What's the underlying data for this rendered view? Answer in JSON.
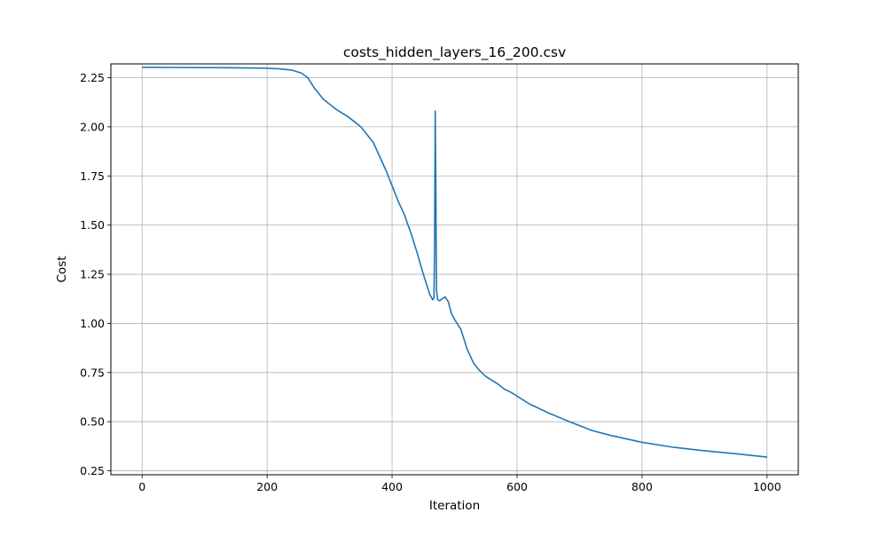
{
  "chart_data": {
    "type": "line",
    "title": "costs_hidden_layers_16_200.csv",
    "xlabel": "Iteration",
    "ylabel": "Cost",
    "xlim": [
      -50,
      1050
    ],
    "ylim": [
      0.23,
      2.32
    ],
    "xticks": [
      0,
      200,
      400,
      600,
      800,
      1000
    ],
    "xtick_labels": [
      "0",
      "200",
      "400",
      "600",
      "800",
      "1000"
    ],
    "yticks": [
      0.25,
      0.5,
      0.75,
      1.0,
      1.25,
      1.5,
      1.75,
      2.0,
      2.25
    ],
    "ytick_labels": [
      "0.25",
      "0.50",
      "0.75",
      "1.00",
      "1.25",
      "1.50",
      "1.75",
      "2.00",
      "2.25"
    ],
    "grid": true,
    "legend": "none",
    "series": [
      {
        "color": "#1f77b4",
        "x": [
          0,
          50,
          100,
          150,
          200,
          220,
          240,
          255,
          265,
          275,
          290,
          310,
          330,
          350,
          370,
          390,
          410,
          420,
          430,
          440,
          450,
          460,
          465,
          467,
          468,
          469,
          470,
          471,
          473,
          476,
          480,
          485,
          490,
          495,
          500,
          510,
          520,
          530,
          540,
          550,
          560,
          570,
          580,
          590,
          600,
          620,
          650,
          680,
          700,
          720,
          750,
          800,
          850,
          900,
          950,
          1000
        ],
        "y": [
          2.303,
          2.302,
          2.301,
          2.3,
          2.298,
          2.295,
          2.288,
          2.273,
          2.25,
          2.2,
          2.14,
          2.09,
          2.05,
          2.0,
          1.92,
          1.78,
          1.62,
          1.55,
          1.46,
          1.36,
          1.25,
          1.15,
          1.12,
          1.13,
          1.4,
          2.08,
          1.7,
          1.17,
          1.12,
          1.115,
          1.125,
          1.135,
          1.11,
          1.05,
          1.02,
          0.97,
          0.87,
          0.8,
          0.76,
          0.73,
          0.71,
          0.69,
          0.665,
          0.65,
          0.63,
          0.59,
          0.545,
          0.505,
          0.48,
          0.455,
          0.43,
          0.395,
          0.37,
          0.352,
          0.337,
          0.32
        ]
      }
    ]
  }
}
